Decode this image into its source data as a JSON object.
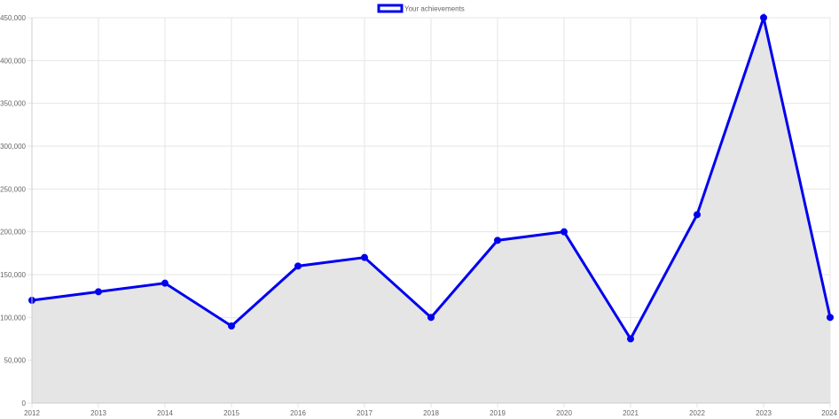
{
  "chart_data": {
    "type": "area",
    "title": "",
    "xlabel": "",
    "ylabel": "",
    "x": [
      "2012",
      "2013",
      "2014",
      "2015",
      "2016",
      "2017",
      "2018",
      "2019",
      "2020",
      "2021",
      "2022",
      "2023",
      "2024"
    ],
    "series": [
      {
        "name": "Your achievements",
        "values": [
          120000,
          130000,
          140000,
          90000,
          160000,
          170000,
          100000,
          190000,
          200000,
          75000,
          220000,
          450000,
          100000
        ],
        "line_color": "#0000ee",
        "fill_color": "#e5e5e5"
      }
    ],
    "ylim": [
      0,
      450000
    ],
    "y_ticks": [
      0,
      50000,
      100000,
      150000,
      200000,
      250000,
      300000,
      350000,
      400000,
      450000
    ],
    "y_tick_labels": [
      "0",
      "50,000",
      "100,000",
      "150,000",
      "200,000",
      "250,000",
      "300,000",
      "350,000",
      "400,000",
      "450,000"
    ],
    "grid": true,
    "legend_position": "top"
  }
}
